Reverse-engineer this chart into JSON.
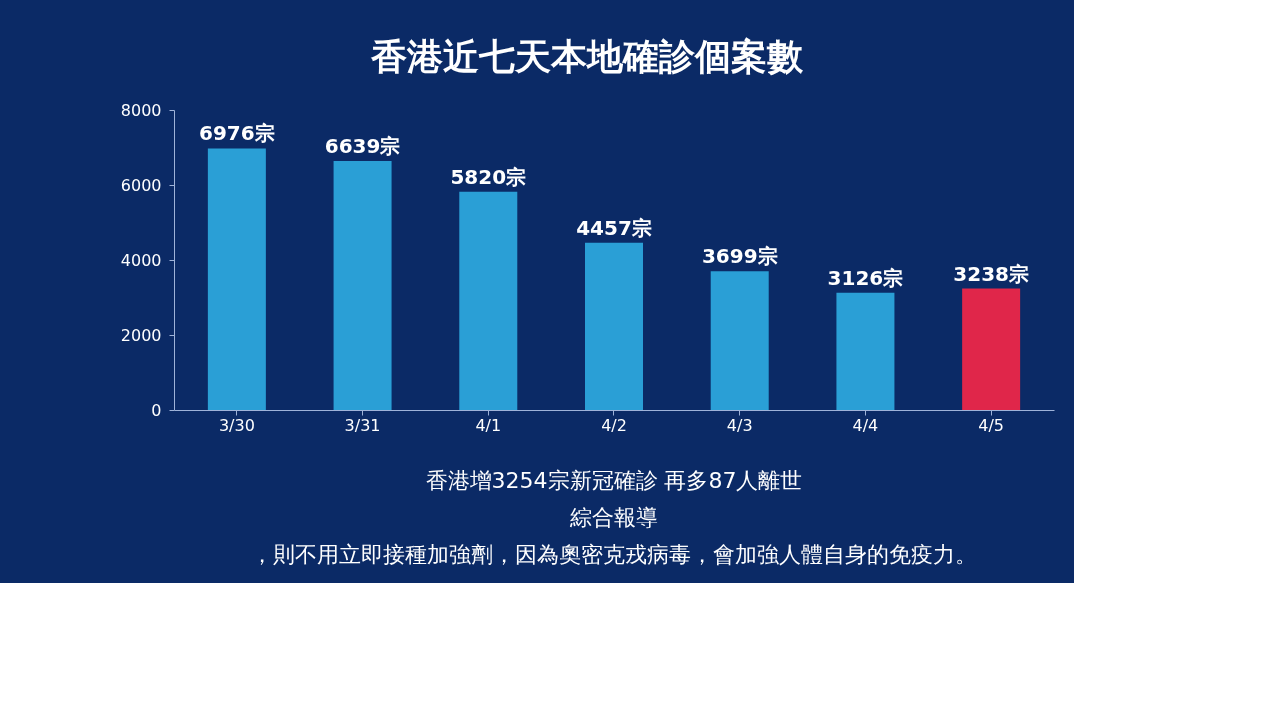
{
  "chart_data": {
    "type": "bar",
    "title": "香港近七天本地確診個案數",
    "categories": [
      "3/30",
      "3/31",
      "4/1",
      "4/2",
      "4/3",
      "4/4",
      "4/5"
    ],
    "values": [
      6976,
      6639,
      5820,
      4457,
      3699,
      3126,
      3238
    ],
    "colors": [
      "#2a9fd6",
      "#2a9fd6",
      "#2a9fd6",
      "#2a9fd6",
      "#2a9fd6",
      "#2a9fd6",
      "#e0264a"
    ],
    "value_labels": [
      "6976宗",
      "6639宗",
      "5820宗",
      "4457宗",
      "3699宗",
      "3126宗",
      "3238宗"
    ],
    "ylim": [
      0,
      8000
    ],
    "yticks": [
      0,
      2000,
      4000,
      6000,
      8000
    ],
    "grid": false,
    "annotations": [
      "香港增3254宗新冠確診 再多87人離世",
      "綜合報導",
      "，則不用立即接種加強劑，因為奧密克戎病毒，會加強人體自身的免疫力。"
    ]
  }
}
